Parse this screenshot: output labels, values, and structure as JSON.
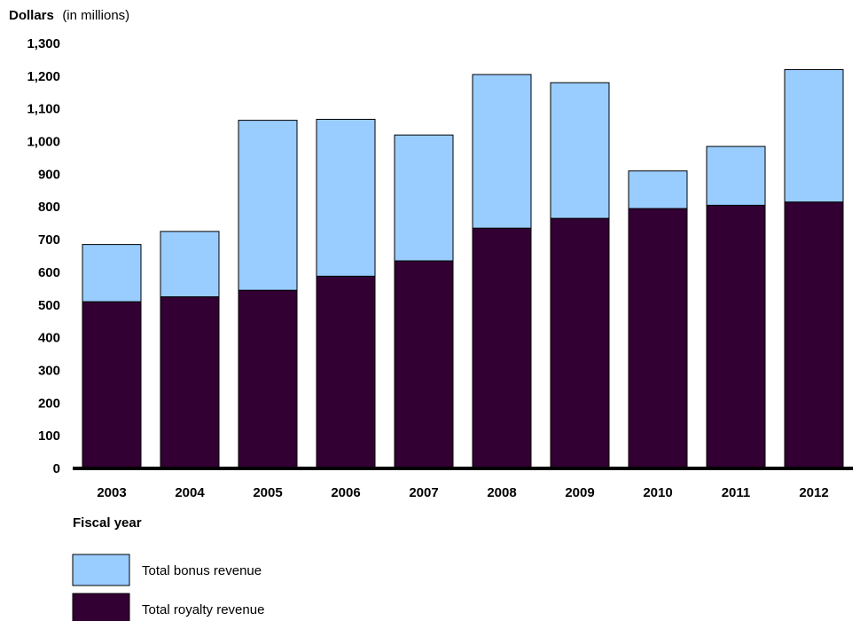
{
  "chart_data": {
    "type": "bar",
    "stacked": true,
    "ylabel": "Dollars",
    "ylabel_unit": "(in millions)",
    "xlabel": "Fiscal year",
    "categories": [
      "2003",
      "2004",
      "2005",
      "2006",
      "2007",
      "2008",
      "2009",
      "2010",
      "2011",
      "2012"
    ],
    "series": [
      {
        "name": "Total royalty revenue",
        "color": "#330033",
        "values": [
          510,
          525,
          545,
          588,
          635,
          735,
          765,
          795,
          805,
          815
        ]
      },
      {
        "name": "Total bonus revenue",
        "color": "#99ccff",
        "values": [
          175,
          200,
          520,
          480,
          385,
          470,
          415,
          115,
          180,
          405
        ]
      }
    ],
    "ylim": [
      0,
      1300
    ],
    "yticks": [
      "0",
      "100",
      "200",
      "300",
      "400",
      "500",
      "600",
      "700",
      "800",
      "900",
      "1,000",
      "1,100",
      "1,200",
      "1,300"
    ],
    "ytick_values": [
      0,
      100,
      200,
      300,
      400,
      500,
      600,
      700,
      800,
      900,
      1000,
      1100,
      1200,
      1300
    ],
    "grid": false,
    "legend_position": "bottom-left",
    "legend_order": [
      "Total bonus revenue",
      "Total royalty revenue"
    ]
  }
}
